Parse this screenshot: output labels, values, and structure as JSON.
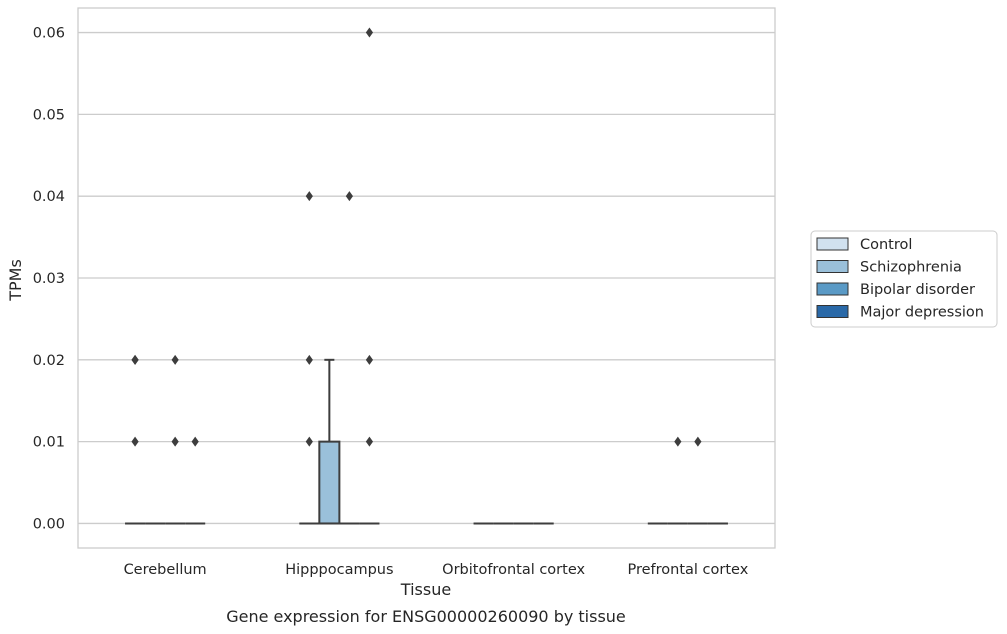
{
  "chart_data": {
    "type": "box",
    "xlabel": "Tissue",
    "ylabel": "TPMs",
    "caption": "Gene expression for ENSG00000260090 by tissue",
    "ylim": [
      -0.003,
      0.063
    ],
    "yticks": [
      "0.00",
      "0.01",
      "0.02",
      "0.03",
      "0.04",
      "0.05",
      "0.06"
    ],
    "grid": "horizontal",
    "legend_position": "right",
    "categories": [
      "Cerebellum",
      "Hipppocampus",
      "Orbitofrontal cortex",
      "Prefrontal cortex"
    ],
    "series": [
      {
        "name": "Control",
        "color": "#d1e1ef",
        "boxes": [
          {
            "category": "Cerebellum",
            "q1": 0,
            "median": 0,
            "q3": 0,
            "whisker_low": 0,
            "whisker_high": 0,
            "outliers": [
              0.01,
              0.02,
              0.02
            ]
          },
          {
            "category": "Hipppocampus",
            "q1": 0,
            "median": 0,
            "q3": 0,
            "whisker_low": 0,
            "whisker_high": 0,
            "outliers": [
              0.01,
              0.02,
              0.04
            ]
          },
          {
            "category": "Orbitofrontal cortex",
            "q1": 0,
            "median": 0,
            "q3": 0,
            "whisker_low": 0,
            "whisker_high": 0,
            "outliers": []
          },
          {
            "category": "Prefrontal cortex",
            "q1": 0,
            "median": 0,
            "q3": 0,
            "whisker_low": 0,
            "whisker_high": 0,
            "outliers": []
          }
        ]
      },
      {
        "name": "Schizophrenia",
        "color": "#9ac0da",
        "boxes": [
          {
            "category": "Cerebellum",
            "q1": 0,
            "median": 0,
            "q3": 0,
            "whisker_low": 0,
            "whisker_high": 0,
            "outliers": []
          },
          {
            "category": "Hipppocampus",
            "q1": 0,
            "median": 0,
            "q3": 0.01,
            "whisker_low": 0,
            "whisker_high": 0.02,
            "outliers": []
          },
          {
            "category": "Orbitofrontal cortex",
            "q1": 0,
            "median": 0,
            "q3": 0,
            "whisker_low": 0,
            "whisker_high": 0,
            "outliers": []
          },
          {
            "category": "Prefrontal cortex",
            "q1": 0,
            "median": 0,
            "q3": 0,
            "whisker_low": 0,
            "whisker_high": 0,
            "outliers": [
              0.01
            ]
          }
        ]
      },
      {
        "name": "Bipolar disorder",
        "color": "#5a9ac6",
        "boxes": [
          {
            "category": "Cerebellum",
            "q1": 0,
            "median": 0,
            "q3": 0,
            "whisker_low": 0,
            "whisker_high": 0,
            "outliers": [
              0.01,
              0.02
            ]
          },
          {
            "category": "Hipppocampus",
            "q1": 0,
            "median": 0,
            "q3": 0,
            "whisker_low": 0,
            "whisker_high": 0,
            "outliers": [
              0.04
            ]
          },
          {
            "category": "Orbitofrontal cortex",
            "q1": 0,
            "median": 0,
            "q3": 0,
            "whisker_low": 0,
            "whisker_high": 0,
            "outliers": []
          },
          {
            "category": "Prefrontal cortex",
            "q1": 0,
            "median": 0,
            "q3": 0,
            "whisker_low": 0,
            "whisker_high": 0,
            "outliers": [
              0.01
            ]
          }
        ]
      },
      {
        "name": "Major depression",
        "color": "#2a69a8",
        "boxes": [
          {
            "category": "Cerebellum",
            "q1": 0,
            "median": 0,
            "q3": 0,
            "whisker_low": 0,
            "whisker_high": 0,
            "outliers": [
              0.01
            ]
          },
          {
            "category": "Hipppocampus",
            "q1": 0,
            "median": 0,
            "q3": 0,
            "whisker_low": 0,
            "whisker_high": 0,
            "outliers": [
              0.01,
              0.02,
              0.06
            ]
          },
          {
            "category": "Orbitofrontal cortex",
            "q1": 0,
            "median": 0,
            "q3": 0,
            "whisker_low": 0,
            "whisker_high": 0,
            "outliers": []
          },
          {
            "category": "Prefrontal cortex",
            "q1": 0,
            "median": 0,
            "q3": 0,
            "whisker_low": 0,
            "whisker_high": 0,
            "outliers": []
          }
        ]
      }
    ]
  }
}
